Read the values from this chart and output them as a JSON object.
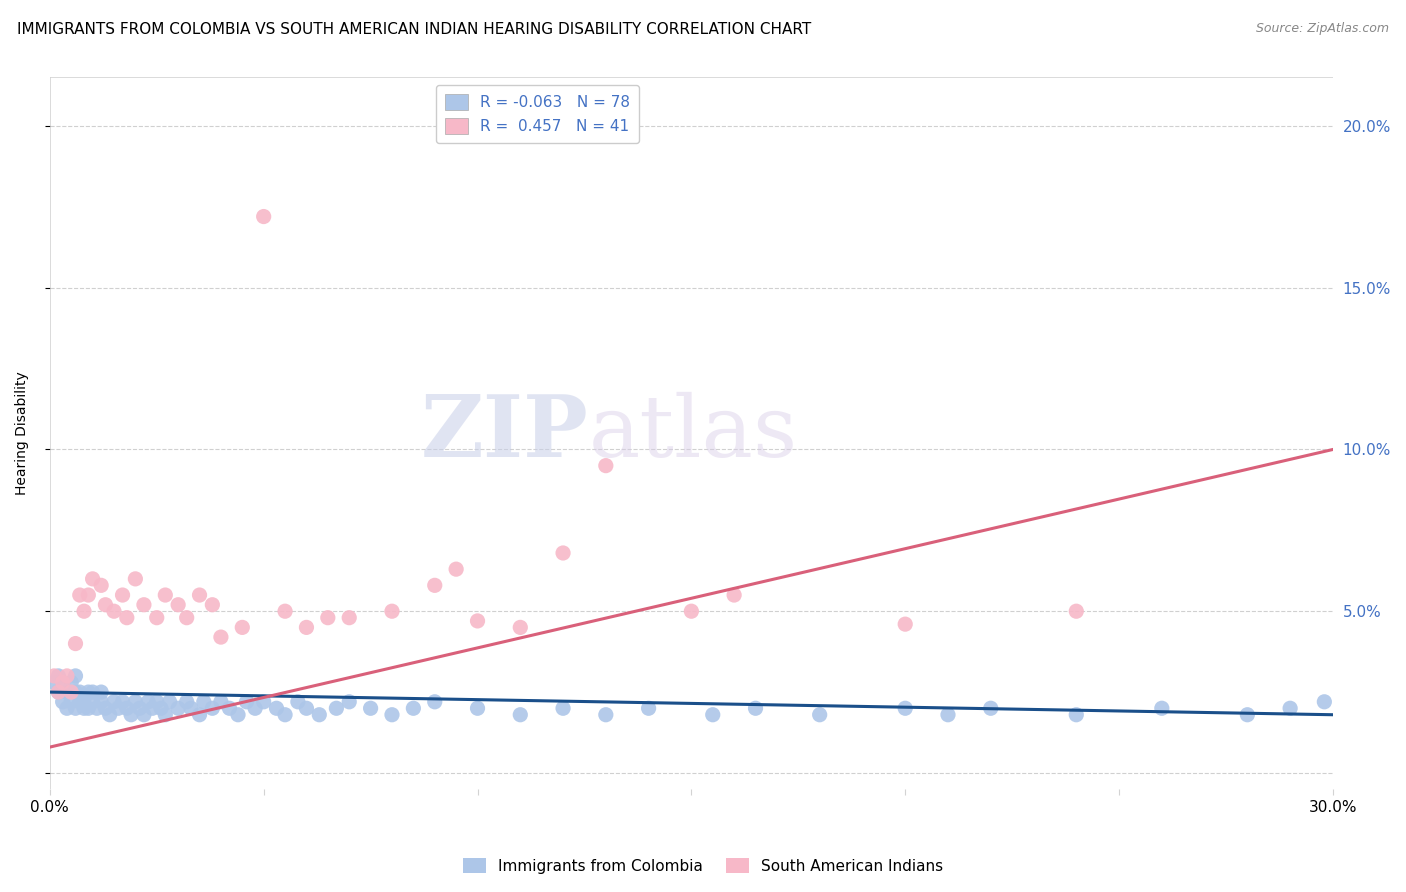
{
  "title": "IMMIGRANTS FROM COLOMBIA VS SOUTH AMERICAN INDIAN HEARING DISABILITY CORRELATION CHART",
  "source": "Source: ZipAtlas.com",
  "ylabel": "Hearing Disability",
  "xlim": [
    0.0,
    0.3
  ],
  "ylim": [
    -0.005,
    0.215
  ],
  "yticks": [
    0.0,
    0.05,
    0.1,
    0.15,
    0.2
  ],
  "yticklabels": [
    "",
    "5.0%",
    "10.0%",
    "15.0%",
    "20.0%"
  ],
  "xticks": [
    0.0,
    0.05,
    0.1,
    0.15,
    0.2,
    0.25,
    0.3
  ],
  "xticklabels": [
    "0.0%",
    "",
    "",
    "",
    "",
    "",
    "30.0%"
  ],
  "series1": {
    "label": "Immigrants from Colombia",
    "R": -0.063,
    "N": 78,
    "color": "#adc6e8",
    "line_color": "#1a4f8a",
    "x": [
      0.001,
      0.002,
      0.002,
      0.003,
      0.003,
      0.004,
      0.004,
      0.005,
      0.005,
      0.006,
      0.006,
      0.006,
      0.007,
      0.007,
      0.008,
      0.008,
      0.009,
      0.009,
      0.01,
      0.01,
      0.011,
      0.012,
      0.012,
      0.013,
      0.014,
      0.015,
      0.016,
      0.017,
      0.018,
      0.019,
      0.02,
      0.021,
      0.022,
      0.023,
      0.024,
      0.025,
      0.026,
      0.027,
      0.028,
      0.03,
      0.032,
      0.033,
      0.035,
      0.036,
      0.038,
      0.04,
      0.042,
      0.044,
      0.046,
      0.048,
      0.05,
      0.053,
      0.055,
      0.058,
      0.06,
      0.063,
      0.067,
      0.07,
      0.075,
      0.08,
      0.085,
      0.09,
      0.1,
      0.11,
      0.12,
      0.13,
      0.14,
      0.155,
      0.165,
      0.18,
      0.2,
      0.21,
      0.22,
      0.24,
      0.26,
      0.28,
      0.29,
      0.298
    ],
    "y": [
      0.028,
      0.025,
      0.03,
      0.022,
      0.028,
      0.02,
      0.025,
      0.022,
      0.028,
      0.02,
      0.025,
      0.03,
      0.022,
      0.025,
      0.02,
      0.023,
      0.02,
      0.025,
      0.022,
      0.025,
      0.02,
      0.022,
      0.025,
      0.02,
      0.018,
      0.022,
      0.02,
      0.022,
      0.02,
      0.018,
      0.022,
      0.02,
      0.018,
      0.022,
      0.02,
      0.022,
      0.02,
      0.018,
      0.022,
      0.02,
      0.022,
      0.02,
      0.018,
      0.022,
      0.02,
      0.022,
      0.02,
      0.018,
      0.022,
      0.02,
      0.022,
      0.02,
      0.018,
      0.022,
      0.02,
      0.018,
      0.02,
      0.022,
      0.02,
      0.018,
      0.02,
      0.022,
      0.02,
      0.018,
      0.02,
      0.018,
      0.02,
      0.018,
      0.02,
      0.018,
      0.02,
      0.018,
      0.02,
      0.018,
      0.02,
      0.018,
      0.02,
      0.022
    ],
    "trend_x": [
      0.0,
      0.3
    ],
    "trend_y": [
      0.025,
      0.018
    ]
  },
  "series2": {
    "label": "South American Indians",
    "R": 0.457,
    "N": 41,
    "color": "#f7b8c8",
    "line_color": "#d9607a",
    "x": [
      0.001,
      0.002,
      0.003,
      0.004,
      0.005,
      0.006,
      0.007,
      0.008,
      0.009,
      0.01,
      0.012,
      0.013,
      0.015,
      0.017,
      0.018,
      0.02,
      0.022,
      0.025,
      0.027,
      0.03,
      0.032,
      0.035,
      0.038,
      0.04,
      0.045,
      0.05,
      0.055,
      0.06,
      0.065,
      0.07,
      0.08,
      0.09,
      0.095,
      0.1,
      0.11,
      0.12,
      0.13,
      0.15,
      0.16,
      0.2,
      0.24
    ],
    "y": [
      0.03,
      0.025,
      0.028,
      0.03,
      0.025,
      0.04,
      0.055,
      0.05,
      0.055,
      0.06,
      0.058,
      0.052,
      0.05,
      0.055,
      0.048,
      0.06,
      0.052,
      0.048,
      0.055,
      0.052,
      0.048,
      0.055,
      0.052,
      0.042,
      0.045,
      0.172,
      0.05,
      0.045,
      0.048,
      0.048,
      0.05,
      0.058,
      0.063,
      0.047,
      0.045,
      0.068,
      0.095,
      0.05,
      0.055,
      0.046,
      0.05
    ],
    "trend_x": [
      0.0,
      0.3
    ],
    "trend_y": [
      0.008,
      0.1
    ]
  },
  "watermark_zip": "ZIP",
  "watermark_atlas": "atlas",
  "background_color": "#ffffff",
  "grid_color": "#d0d0d0",
  "title_fontsize": 11,
  "axis_label_fontsize": 10,
  "tick_fontsize": 11,
  "legend_fontsize": 11,
  "right_tick_color": "#4472c4",
  "blue_tick_color": "#4472c4"
}
